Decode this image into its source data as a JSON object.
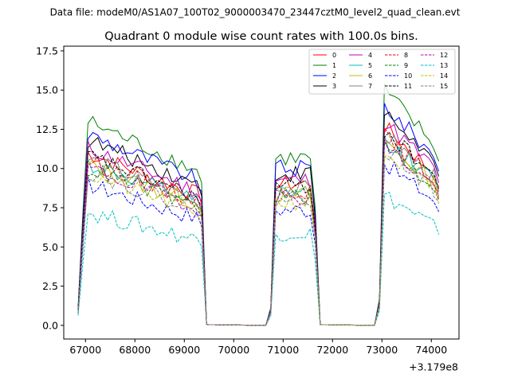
{
  "header": {
    "file_label": "Data file: modeM0/AS1A07_100T02_9000003470_23447cztM0_level2_quad_clean.evt"
  },
  "chart_data": {
    "type": "line",
    "title": "Quadrant 0 module wise count rates with 100.0s bins.",
    "xlabel": "",
    "ylabel": "",
    "x_offset_label": "+3.179e8",
    "xlim": [
      66560,
      74560
    ],
    "ylim": [
      -0.87,
      17.8
    ],
    "x_ticks": [
      67000,
      68000,
      69000,
      70000,
      71000,
      72000,
      73000,
      74000
    ],
    "x_tick_labels": [
      "67000",
      "68000",
      "69000",
      "70000",
      "71000",
      "72000",
      "73000",
      "74000"
    ],
    "y_ticks": [
      0,
      2.5,
      5,
      7.5,
      10,
      12.5,
      15,
      17.5
    ],
    "y_tick_labels": [
      "0.0",
      "2.5",
      "5.0",
      "7.5",
      "10.0",
      "12.5",
      "15.0",
      "17.5"
    ],
    "segments": [
      {
        "start": 66850,
        "end": 69350,
        "ramp": [
          1.0,
          6.5
        ],
        "peak_frac": 1.0,
        "decay": 0.25
      },
      {
        "start": 70750,
        "end": 71650,
        "ramp": [
          1.0
        ],
        "peak_frac": 0.82,
        "decay": 0.0
      },
      {
        "start": 72950,
        "end": 74150,
        "ramp": [
          1.5
        ],
        "peak_frac": 1.15,
        "decay": 0.25
      }
    ],
    "series": [
      {
        "name": "0",
        "color": "#ff0000",
        "style": "solid",
        "level": 11.0
      },
      {
        "name": "1",
        "color": "#008000",
        "style": "solid",
        "level": 13.0
      },
      {
        "name": "2",
        "color": "#0000ff",
        "style": "solid",
        "level": 12.2
      },
      {
        "name": "3",
        "color": "#000000",
        "style": "solid",
        "level": 11.8
      },
      {
        "name": "4",
        "color": "#bf00bf",
        "style": "solid",
        "level": 11.3
      },
      {
        "name": "5",
        "color": "#00bfbf",
        "style": "solid",
        "level": 10.3
      },
      {
        "name": "6",
        "color": "#bfbf00",
        "style": "solid",
        "level": 10.2
      },
      {
        "name": "7",
        "color": "#808080",
        "style": "solid",
        "level": 10.6
      },
      {
        "name": "8",
        "color": "#ff0000",
        "style": "dashed",
        "level": 10.5
      },
      {
        "name": "9",
        "color": "#008000",
        "style": "dashed",
        "level": 10.0
      },
      {
        "name": "10",
        "color": "#0000ff",
        "style": "dashed",
        "level": 9.0
      },
      {
        "name": "11",
        "color": "#000000",
        "style": "dashed",
        "level": 10.8
      },
      {
        "name": "12",
        "color": "#bf00bf",
        "style": "dashed",
        "level": 10.0
      },
      {
        "name": "13",
        "color": "#00bfbf",
        "style": "dashed",
        "level": 7.2
      },
      {
        "name": "14",
        "color": "#bfbf00",
        "style": "dashed",
        "level": 9.6
      },
      {
        "name": "15",
        "color": "#808080",
        "style": "dashed",
        "level": 9.8
      }
    ],
    "legend_location": "top-right"
  }
}
